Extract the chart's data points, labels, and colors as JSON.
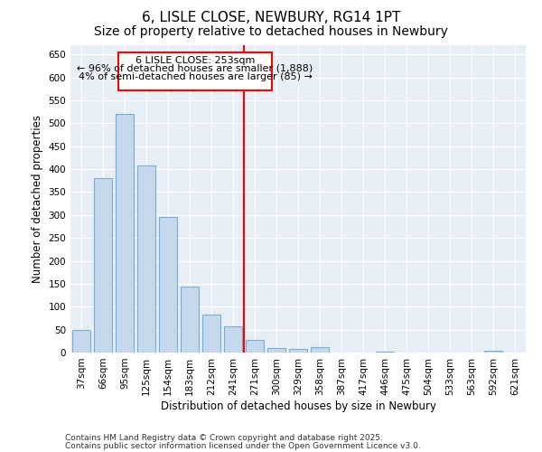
{
  "title": "6, LISLE CLOSE, NEWBURY, RG14 1PT",
  "subtitle": "Size of property relative to detached houses in Newbury",
  "xlabel": "Distribution of detached houses by size in Newbury",
  "ylabel": "Number of detached properties",
  "categories": [
    "37sqm",
    "66sqm",
    "95sqm",
    "125sqm",
    "154sqm",
    "183sqm",
    "212sqm",
    "241sqm",
    "271sqm",
    "300sqm",
    "329sqm",
    "358sqm",
    "387sqm",
    "417sqm",
    "446sqm",
    "475sqm",
    "504sqm",
    "533sqm",
    "563sqm",
    "592sqm",
    "621sqm"
  ],
  "values": [
    50,
    380,
    520,
    408,
    295,
    143,
    83,
    57,
    27,
    10,
    8,
    11,
    0,
    0,
    2,
    0,
    0,
    0,
    0,
    4,
    0
  ],
  "bar_color": "#c5d8ee",
  "bar_edge_color": "#7aadd4",
  "highlight_line_index": 7.5,
  "annotation_title": "6 LISLE CLOSE: 253sqm",
  "annotation_line1": "← 96% of detached houses are smaller (1,888)",
  "annotation_line2": "4% of semi-detached houses are larger (85) →",
  "ylim": [
    0,
    670
  ],
  "yticks": [
    0,
    50,
    100,
    150,
    200,
    250,
    300,
    350,
    400,
    450,
    500,
    550,
    600,
    650
  ],
  "footer1": "Contains HM Land Registry data © Crown copyright and database right 2025.",
  "footer2": "Contains public sector information licensed under the Open Government Licence v3.0.",
  "bg_color": "#ffffff",
  "plot_bg_color": "#e8eef5",
  "grid_color": "#ffffff",
  "title_fontsize": 11,
  "subtitle_fontsize": 10,
  "axis_label_fontsize": 8.5,
  "tick_fontsize": 7.5,
  "annotation_fontsize": 8,
  "footer_fontsize": 6.5
}
